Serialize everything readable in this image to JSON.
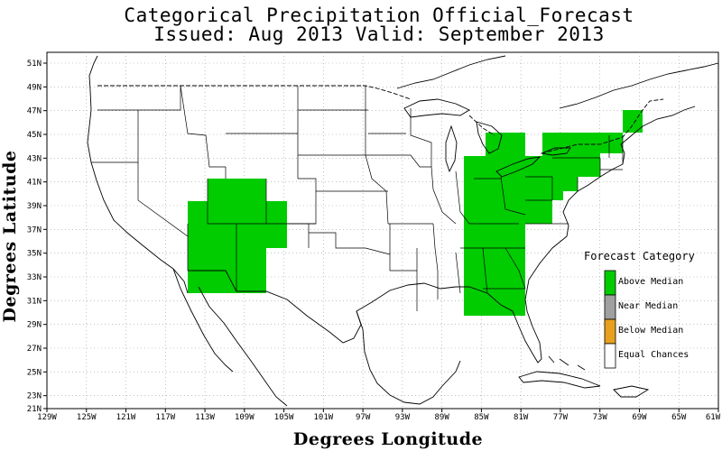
{
  "title_line1": "Categorical Precipitation Official_Forecast",
  "title_line2": "Issued: Aug 2013 Valid: September 2013",
  "xlabel": "Degrees Longitude",
  "ylabel": "Degrees Latitude",
  "lon_ticks": [
    "129W",
    "125W",
    "121W",
    "117W",
    "113W",
    "109W",
    "105W",
    "101W",
    "97W",
    "93W",
    "89W",
    "85W",
    "81W",
    "77W",
    "73W",
    "69W",
    "65W",
    "61W"
  ],
  "lat_ticks": [
    "51N",
    "49N",
    "47N",
    "45N",
    "43N",
    "41N",
    "39N",
    "37N",
    "35N",
    "33N",
    "31N",
    "29N",
    "27N",
    "25N",
    "23N",
    "21N"
  ],
  "legend": {
    "title": "Forecast Category",
    "items": [
      {
        "label": "Above Median",
        "color": "#00cc00"
      },
      {
        "label": "Near Median",
        "color": "#a0a0a0"
      },
      {
        "label": "Below Median",
        "color": "#e8a020"
      },
      {
        "label": "Equal Chances",
        "color": "#ffffff"
      }
    ]
  },
  "colors": {
    "above_median": "#00cc00",
    "grid": "#9a9a9a",
    "boundary": "#000000"
  },
  "regions": [
    {
      "name": "southwest-above-median",
      "category": "Above Median"
    },
    {
      "name": "east-above-median",
      "category": "Above Median"
    },
    {
      "name": "maine-above-median",
      "category": "Above Median"
    }
  ]
}
